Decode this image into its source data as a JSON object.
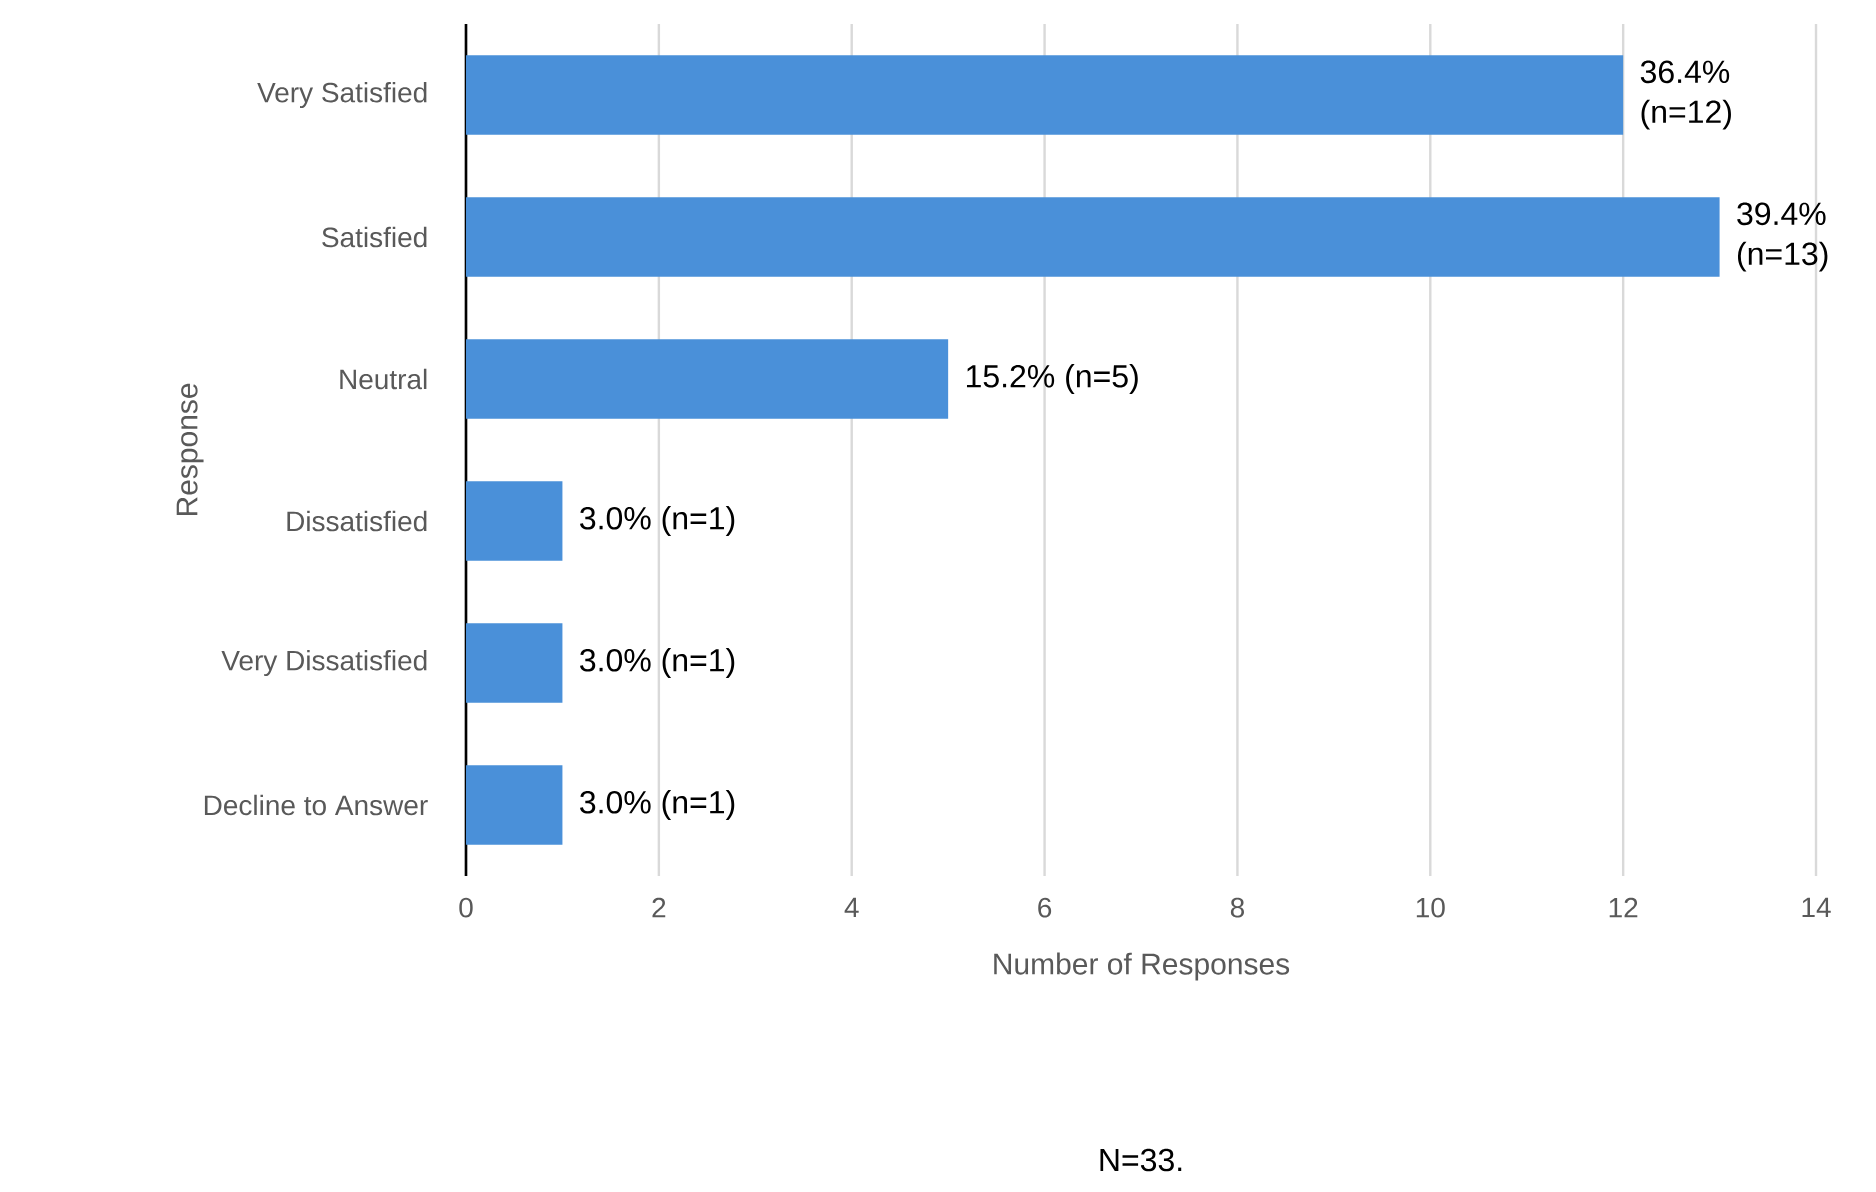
{
  "chart_data": {
    "type": "bar",
    "orientation": "horizontal",
    "xlabel": "Number of Responses",
    "ylabel": "Response",
    "categories": [
      "Very Satisfied",
      "Satisfied",
      "Neutral",
      "Dissatisfied",
      "Very Dissatisfied",
      "Decline to Answer"
    ],
    "values": [
      12,
      13,
      5,
      1,
      1,
      1
    ],
    "value_labels": [
      "36.4% (n=12)",
      "39.4% (n=13)",
      "15.2% (n=5)",
      "3.0% (n=1)",
      "3.0% (n=1)",
      "3.0% (n=1)"
    ],
    "color": "#4a90d9",
    "xlim": [
      0,
      14
    ],
    "xticks": [
      0,
      2,
      4,
      6,
      8,
      10,
      12,
      14
    ],
    "grid": "x",
    "annotations": [
      "N=33."
    ]
  }
}
